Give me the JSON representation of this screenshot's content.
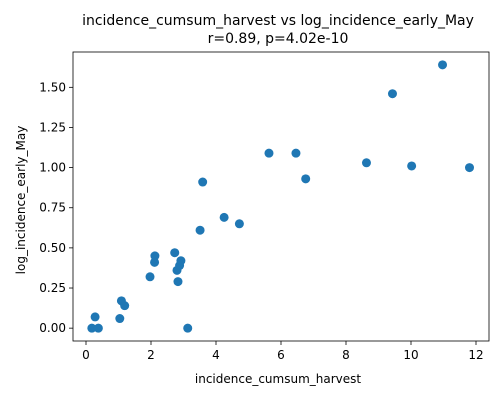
{
  "chart_data": {
    "type": "scatter",
    "title": "incidence_cumsum_harvest vs log_incidence_early_May",
    "subtitle": "r=0.89, p=4.02e-10",
    "xlabel": "incidence_cumsum_harvest",
    "ylabel": "log_incidence_early_May",
    "xlim": [
      -0.4,
      12.4
    ],
    "ylim": [
      -0.08,
      1.72
    ],
    "x_ticks": [
      0,
      2,
      4,
      6,
      8,
      10,
      12
    ],
    "x_tick_labels": [
      "0",
      "2",
      "4",
      "6",
      "8",
      "10",
      "12"
    ],
    "y_ticks": [
      0.0,
      0.25,
      0.5,
      0.75,
      1.0,
      1.25,
      1.5
    ],
    "y_tick_labels": [
      "0.00",
      "0.25",
      "0.50",
      "0.75",
      "1.00",
      "1.25",
      "1.50"
    ],
    "grid": false,
    "marker_color": "#1f77b4",
    "x": [
      0.18,
      0.28,
      0.38,
      1.04,
      1.09,
      1.19,
      1.97,
      2.11,
      2.12,
      2.73,
      2.8,
      2.83,
      2.88,
      2.92,
      3.13,
      3.51,
      3.59,
      4.25,
      4.72,
      5.63,
      6.46,
      6.76,
      8.63,
      10.02,
      11.8,
      9.43,
      10.97
    ],
    "y": [
      0.0,
      0.07,
      0.0,
      0.06,
      0.17,
      0.14,
      0.32,
      0.41,
      0.45,
      0.47,
      0.36,
      0.29,
      0.39,
      0.42,
      0.0,
      0.61,
      0.91,
      0.69,
      0.65,
      1.09,
      1.09,
      0.93,
      1.03,
      1.01,
      1.0,
      1.46,
      1.64
    ]
  }
}
